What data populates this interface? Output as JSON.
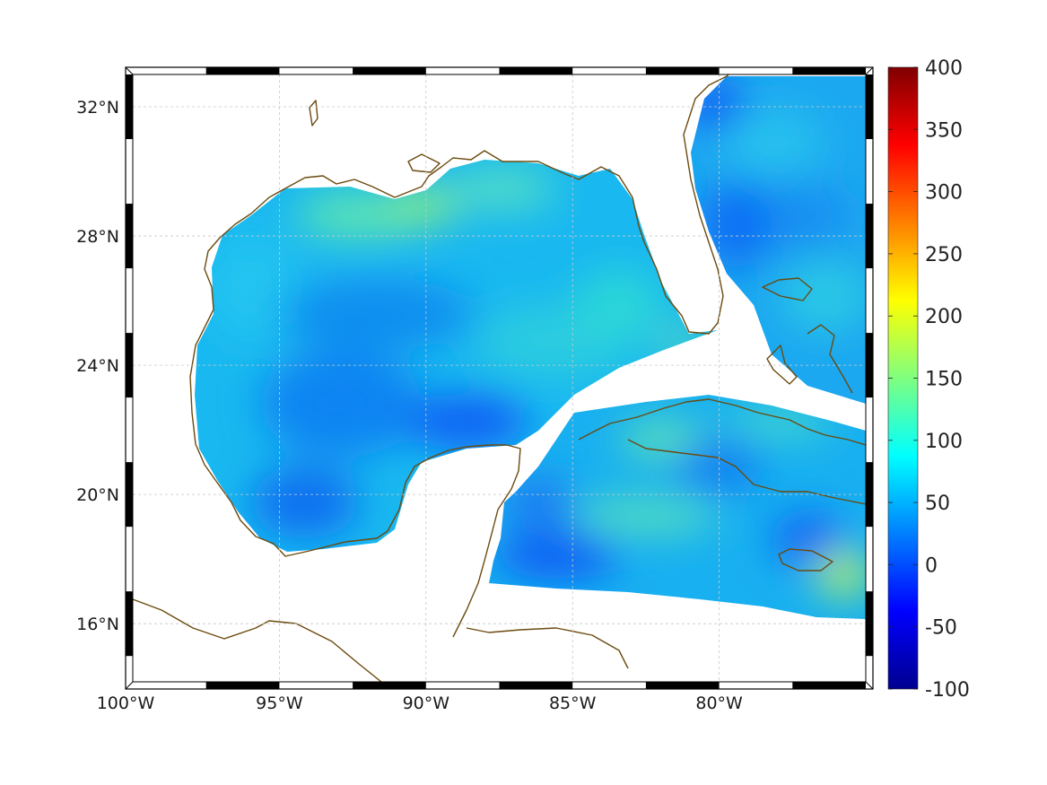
{
  "map": {
    "lon_range": [
      -100,
      -75
    ],
    "lat_range": [
      14.2,
      33
    ],
    "lon_ticks": [
      {
        "value": -100,
        "label": "100°W"
      },
      {
        "value": -95,
        "label": "95°W"
      },
      {
        "value": -90,
        "label": "90°W"
      },
      {
        "value": -85,
        "label": "85°W"
      },
      {
        "value": -80,
        "label": "80°W"
      }
    ],
    "lat_ticks": [
      {
        "value": 32,
        "label": "32°N"
      },
      {
        "value": 28,
        "label": "28°N"
      },
      {
        "value": 24,
        "label": "24°N"
      },
      {
        "value": 20,
        "label": "20°N"
      },
      {
        "value": 16,
        "label": "16°N"
      }
    ],
    "grid": true,
    "coastline_color": "#6b4a0e",
    "land_color": "#ffffff",
    "frame_style": "alternating black/white border"
  },
  "colorbar": {
    "min": -100,
    "max": 400,
    "colormap": "jet",
    "placement": "right",
    "ticks": [
      {
        "value": 400,
        "label": "400"
      },
      {
        "value": 350,
        "label": "350"
      },
      {
        "value": 300,
        "label": "300"
      },
      {
        "value": 250,
        "label": "250"
      },
      {
        "value": 200,
        "label": "200"
      },
      {
        "value": 150,
        "label": "150"
      },
      {
        "value": 100,
        "label": "100"
      },
      {
        "value": 50,
        "label": "50"
      },
      {
        "value": 0,
        "label": "0"
      },
      {
        "value": -50,
        "label": "-50"
      },
      {
        "value": -100,
        "label": "-100"
      }
    ]
  }
}
